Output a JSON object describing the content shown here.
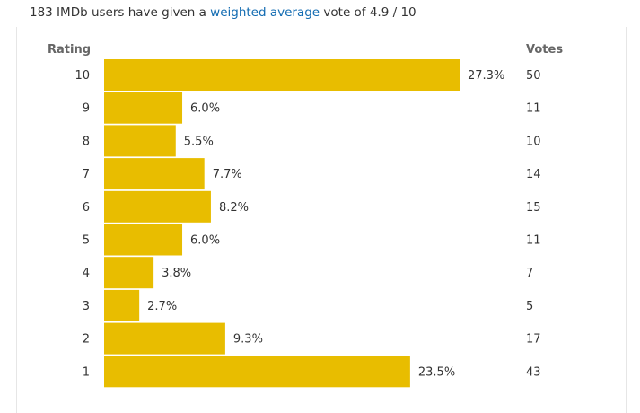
{
  "summary": {
    "before": "183 IMDb users have given a ",
    "link": "weighted average",
    "after": " vote of 4.9 / 10"
  },
  "colors": {
    "bar": "#e8bd00",
    "link": "#136cb2"
  },
  "chart_data": {
    "type": "bar",
    "orientation": "horizontal",
    "row_header": "Rating",
    "votes_header": "Votes",
    "categories": [
      "10",
      "9",
      "8",
      "7",
      "6",
      "5",
      "4",
      "3",
      "2",
      "1"
    ],
    "percent_labels": [
      "27.3%",
      "6.0%",
      "5.5%",
      "7.7%",
      "8.2%",
      "6.0%",
      "3.8%",
      "2.7%",
      "9.3%",
      "23.5%"
    ],
    "values": [
      27.3,
      6.0,
      5.5,
      7.7,
      8.2,
      6.0,
      3.8,
      2.7,
      9.3,
      23.5
    ],
    "votes": [
      50,
      11,
      10,
      14,
      15,
      11,
      7,
      5,
      17,
      43
    ],
    "xlim": [
      0,
      27.3
    ]
  }
}
